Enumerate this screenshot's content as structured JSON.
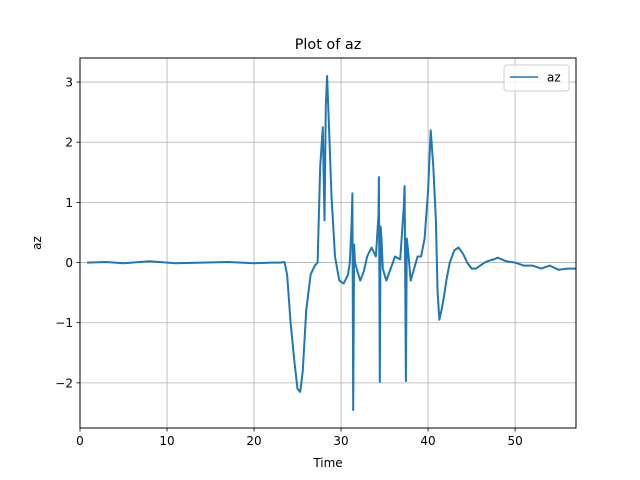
{
  "chart_data": {
    "type": "line",
    "title": "Plot of az",
    "xlabel": "Time",
    "ylabel": "az",
    "xlim": [
      0,
      57
    ],
    "ylim": [
      -2.75,
      3.4
    ],
    "xticks": [
      0,
      10,
      20,
      30,
      40,
      50
    ],
    "yticks": [
      -2,
      -1,
      0,
      1,
      2,
      3
    ],
    "grid": true,
    "legend_position": "top-right",
    "series": [
      {
        "name": "az",
        "color": "#1f77b4",
        "x": [
          0.8,
          3,
          5,
          8,
          11,
          14,
          17,
          20,
          22,
          23,
          23.5,
          23.8,
          24.2,
          24.6,
          25.0,
          25.3,
          25.6,
          26.0,
          26.5,
          27.0,
          27.3,
          27.6,
          27.9,
          28.1,
          28.25,
          28.4,
          28.6,
          28.9,
          29.3,
          29.8,
          30.3,
          30.8,
          31.0,
          31.2,
          31.3,
          31.4,
          31.5,
          31.6,
          31.8,
          32.2,
          32.6,
          33.0,
          33.5,
          34.0,
          34.3,
          34.35,
          34.45,
          34.55,
          34.65,
          34.8,
          35.2,
          35.7,
          36.2,
          36.8,
          37.2,
          37.3,
          37.45,
          37.55,
          37.7,
          38.0,
          38.4,
          38.8,
          39.2,
          39.6,
          40.0,
          40.3,
          40.6,
          40.9,
          41.1,
          41.3,
          41.6,
          41.9,
          42.1,
          42.5,
          43.0,
          43.5,
          44.0,
          44.5,
          45.0,
          45.5,
          46.0,
          46.5,
          47.0,
          47.5,
          48.0,
          49.0,
          50.0,
          51.0,
          52.0,
          53.0,
          54.0,
          55.0,
          56.0,
          57.0
        ],
        "y": [
          0.0,
          0.01,
          -0.01,
          0.02,
          -0.01,
          0.0,
          0.01,
          -0.01,
          0.0,
          0.0,
          0.01,
          -0.2,
          -1.0,
          -1.6,
          -2.1,
          -2.15,
          -1.8,
          -0.8,
          -0.2,
          -0.05,
          0.0,
          1.6,
          2.25,
          0.7,
          2.6,
          3.1,
          2.3,
          1.1,
          0.1,
          -0.3,
          -0.35,
          -0.2,
          0.0,
          0.6,
          1.15,
          -2.45,
          0.3,
          0.0,
          -0.1,
          -0.3,
          -0.15,
          0.1,
          0.25,
          0.1,
          0.8,
          1.42,
          -1.98,
          0.6,
          0.4,
          -0.1,
          -0.3,
          -0.1,
          0.1,
          0.05,
          0.9,
          1.27,
          -1.97,
          0.4,
          0.2,
          -0.3,
          -0.1,
          0.1,
          0.1,
          0.4,
          1.2,
          2.2,
          1.6,
          0.7,
          -0.5,
          -0.95,
          -0.75,
          -0.5,
          -0.3,
          0.0,
          0.2,
          0.25,
          0.15,
          0.0,
          -0.1,
          -0.1,
          -0.05,
          0.0,
          0.03,
          0.05,
          0.08,
          0.02,
          0.0,
          -0.05,
          -0.05,
          -0.1,
          -0.05,
          -0.12,
          -0.1,
          -0.1
        ]
      }
    ]
  }
}
